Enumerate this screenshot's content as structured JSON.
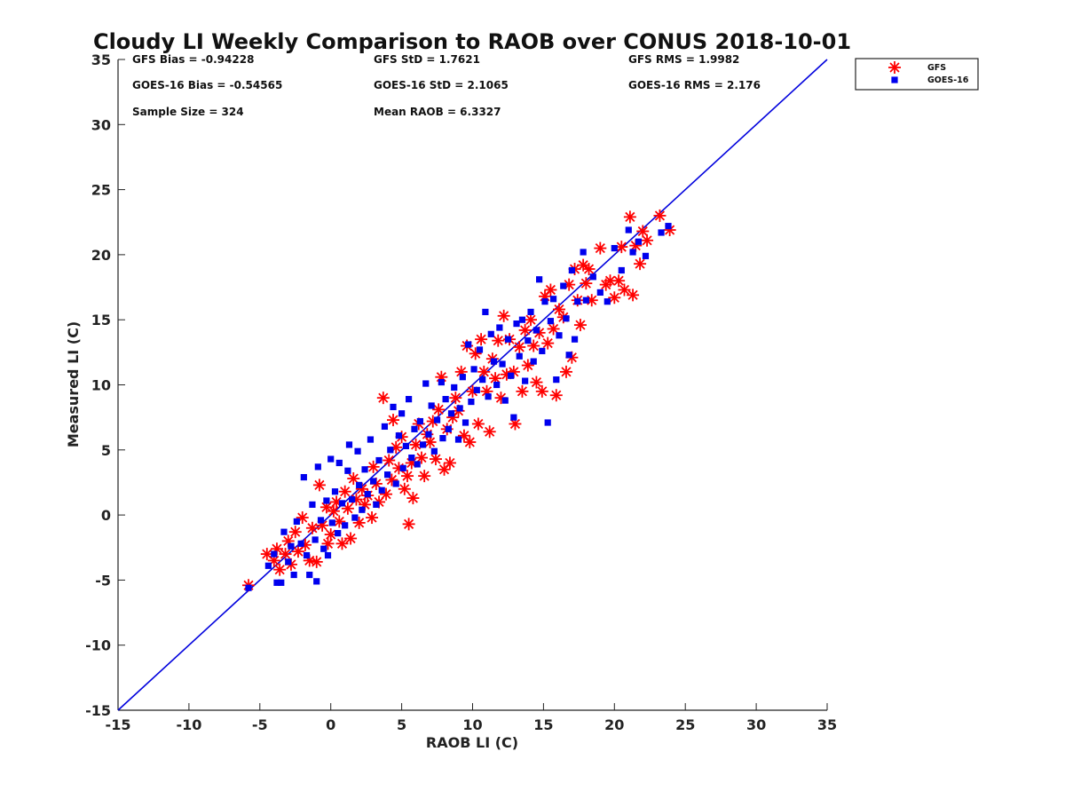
{
  "chart_data": {
    "type": "scatter",
    "title": "Cloudy LI Weekly Comparison to RAOB over CONUS 2018-10-01",
    "xlabel": "RAOB LI (C)",
    "ylabel": "Measured LI (C)",
    "xlim": [
      -15,
      35
    ],
    "ylim": [
      -15,
      35
    ],
    "xticks": [
      "-15",
      "-10",
      "-5",
      "0",
      "5",
      "10",
      "15",
      "20",
      "25",
      "30",
      "35"
    ],
    "yticks": [
      "-15",
      "-10",
      "-5",
      "0",
      "5",
      "10",
      "15",
      "20",
      "25",
      "30",
      "35"
    ],
    "grid": false,
    "legend_position": "outside top-right",
    "reference_line": {
      "type": "one-to-one",
      "from": [
        -15,
        -15
      ],
      "to": [
        35,
        35
      ],
      "color": "#0000dd"
    },
    "stats": [
      [
        "GFS Bias = -0.94228",
        "GFS StD = 1.7621",
        "GFS RMS = 1.9982"
      ],
      [
        "GOES-16 Bias = -0.54565",
        "GOES-16 StD = 2.1065",
        "GOES-16 RMS = 2.176"
      ],
      [
        "Sample Size = 324",
        "Mean RAOB = 6.3327",
        ""
      ]
    ],
    "series": [
      {
        "name": "GFS",
        "marker": "asterisk",
        "color": "#ff0000",
        "points": [
          [
            -5.8,
            -5.4
          ],
          [
            -4.5,
            -3.0
          ],
          [
            -4.0,
            -3.5
          ],
          [
            -3.8,
            -2.6
          ],
          [
            -3.6,
            -4.2
          ],
          [
            -3.2,
            -3.0
          ],
          [
            -3.0,
            -2.0
          ],
          [
            -2.8,
            -3.8
          ],
          [
            -2.5,
            -1.3
          ],
          [
            -2.3,
            -2.8
          ],
          [
            -2.0,
            -0.2
          ],
          [
            -1.8,
            -2.3
          ],
          [
            -1.5,
            -3.5
          ],
          [
            -1.3,
            -1.0
          ],
          [
            -1.0,
            -3.6
          ],
          [
            -0.8,
            2.3
          ],
          [
            -0.6,
            -0.8
          ],
          [
            -0.3,
            0.6
          ],
          [
            -0.2,
            -2.2
          ],
          [
            0.0,
            -1.5
          ],
          [
            0.2,
            0.3
          ],
          [
            0.4,
            1.0
          ],
          [
            0.6,
            -0.5
          ],
          [
            0.8,
            -2.2
          ],
          [
            1.0,
            1.8
          ],
          [
            1.2,
            0.5
          ],
          [
            1.4,
            -1.8
          ],
          [
            1.6,
            2.8
          ],
          [
            1.8,
            1.2
          ],
          [
            2.0,
            -0.6
          ],
          [
            2.2,
            2.0
          ],
          [
            2.4,
            0.8
          ],
          [
            2.6,
            1.5
          ],
          [
            2.9,
            -0.2
          ],
          [
            3.0,
            3.7
          ],
          [
            3.2,
            2.4
          ],
          [
            3.4,
            1.0
          ],
          [
            3.7,
            9.0
          ],
          [
            3.9,
            1.6
          ],
          [
            4.1,
            4.2
          ],
          [
            4.3,
            2.7
          ],
          [
            4.4,
            7.3
          ],
          [
            4.6,
            5.2
          ],
          [
            4.8,
            3.6
          ],
          [
            5.0,
            6.0
          ],
          [
            5.2,
            2.0
          ],
          [
            5.4,
            3.0
          ],
          [
            5.5,
            -0.7
          ],
          [
            5.7,
            4.0
          ],
          [
            5.8,
            1.3
          ],
          [
            6.0,
            5.4
          ],
          [
            6.2,
            7.0
          ],
          [
            6.4,
            4.4
          ],
          [
            6.6,
            3.0
          ],
          [
            6.8,
            6.2
          ],
          [
            7.0,
            5.6
          ],
          [
            7.2,
            7.2
          ],
          [
            7.4,
            4.3
          ],
          [
            7.6,
            8.1
          ],
          [
            7.8,
            10.6
          ],
          [
            8.0,
            3.5
          ],
          [
            8.2,
            6.6
          ],
          [
            8.4,
            4.0
          ],
          [
            8.6,
            7.5
          ],
          [
            8.8,
            9.0
          ],
          [
            9.0,
            8.0
          ],
          [
            9.2,
            11.0
          ],
          [
            9.4,
            6.1
          ],
          [
            9.6,
            13.0
          ],
          [
            9.8,
            5.6
          ],
          [
            10.0,
            9.5
          ],
          [
            10.2,
            12.4
          ],
          [
            10.4,
            7.0
          ],
          [
            10.6,
            13.5
          ],
          [
            10.8,
            11.0
          ],
          [
            11.0,
            9.5
          ],
          [
            11.2,
            6.4
          ],
          [
            11.4,
            12.0
          ],
          [
            11.6,
            10.5
          ],
          [
            11.8,
            13.4
          ],
          [
            12.0,
            9.0
          ],
          [
            12.2,
            15.3
          ],
          [
            12.4,
            10.8
          ],
          [
            12.6,
            13.5
          ],
          [
            12.9,
            11.0
          ],
          [
            13.0,
            7.0
          ],
          [
            13.3,
            12.9
          ],
          [
            13.5,
            9.5
          ],
          [
            13.7,
            14.2
          ],
          [
            13.9,
            11.5
          ],
          [
            14.1,
            15.0
          ],
          [
            14.3,
            13.0
          ],
          [
            14.5,
            10.2
          ],
          [
            14.7,
            14.0
          ],
          [
            14.9,
            9.5
          ],
          [
            15.1,
            16.8
          ],
          [
            15.3,
            13.2
          ],
          [
            15.5,
            17.3
          ],
          [
            15.7,
            14.3
          ],
          [
            15.9,
            9.2
          ],
          [
            16.1,
            15.8
          ],
          [
            16.4,
            15.2
          ],
          [
            16.6,
            11.0
          ],
          [
            16.8,
            17.7
          ],
          [
            17.0,
            12.1
          ],
          [
            17.2,
            18.9
          ],
          [
            17.4,
            16.5
          ],
          [
            17.6,
            14.6
          ],
          [
            17.8,
            19.2
          ],
          [
            18.0,
            17.8
          ],
          [
            18.2,
            18.9
          ],
          [
            18.4,
            16.5
          ],
          [
            19.0,
            20.5
          ],
          [
            19.4,
            17.7
          ],
          [
            19.7,
            18.0
          ],
          [
            20.0,
            16.7
          ],
          [
            20.3,
            18.0
          ],
          [
            20.5,
            20.6
          ],
          [
            20.7,
            17.3
          ],
          [
            21.1,
            22.9
          ],
          [
            21.3,
            16.9
          ],
          [
            21.5,
            20.7
          ],
          [
            21.8,
            19.3
          ],
          [
            22.0,
            21.8
          ],
          [
            22.3,
            21.1
          ],
          [
            23.2,
            23.0
          ],
          [
            23.9,
            21.9
          ]
        ]
      },
      {
        "name": "GOES-16",
        "marker": "square",
        "color": "#0000ee",
        "points": [
          [
            -5.8,
            -5.6
          ],
          [
            -4.4,
            -3.9
          ],
          [
            -4.0,
            -3.0
          ],
          [
            -3.8,
            -5.2
          ],
          [
            -3.5,
            -5.2
          ],
          [
            -3.3,
            -1.3
          ],
          [
            -3.0,
            -3.6
          ],
          [
            -2.8,
            -2.4
          ],
          [
            -2.6,
            -4.6
          ],
          [
            -2.4,
            -0.5
          ],
          [
            -2.1,
            -2.2
          ],
          [
            -1.9,
            2.9
          ],
          [
            -1.7,
            -3.1
          ],
          [
            -1.5,
            -4.6
          ],
          [
            -1.3,
            0.8
          ],
          [
            -1.1,
            -1.9
          ],
          [
            -1.0,
            -5.1
          ],
          [
            -0.9,
            3.7
          ],
          [
            -0.7,
            -0.4
          ],
          [
            -0.5,
            -2.6
          ],
          [
            -0.3,
            1.1
          ],
          [
            -0.2,
            -3.1
          ],
          [
            0.0,
            4.3
          ],
          [
            0.1,
            -0.6
          ],
          [
            0.3,
            1.8
          ],
          [
            0.5,
            -1.4
          ],
          [
            0.6,
            4.0
          ],
          [
            0.8,
            0.9
          ],
          [
            1.0,
            -0.8
          ],
          [
            1.2,
            3.4
          ],
          [
            1.3,
            5.4
          ],
          [
            1.5,
            1.2
          ],
          [
            1.7,
            -0.2
          ],
          [
            1.9,
            4.9
          ],
          [
            2.0,
            2.3
          ],
          [
            2.2,
            0.4
          ],
          [
            2.4,
            3.5
          ],
          [
            2.6,
            1.6
          ],
          [
            2.8,
            5.8
          ],
          [
            3.0,
            2.6
          ],
          [
            3.2,
            0.8
          ],
          [
            3.4,
            4.2
          ],
          [
            3.6,
            1.9
          ],
          [
            3.8,
            6.8
          ],
          [
            4.0,
            3.1
          ],
          [
            4.2,
            5.0
          ],
          [
            4.4,
            8.3
          ],
          [
            4.6,
            2.4
          ],
          [
            4.8,
            6.1
          ],
          [
            5.0,
            7.8
          ],
          [
            5.1,
            3.6
          ],
          [
            5.3,
            5.3
          ],
          [
            5.5,
            8.9
          ],
          [
            5.7,
            4.4
          ],
          [
            5.9,
            6.6
          ],
          [
            6.1,
            3.9
          ],
          [
            6.3,
            7.2
          ],
          [
            6.5,
            5.4
          ],
          [
            6.7,
            10.1
          ],
          [
            6.9,
            6.2
          ],
          [
            7.1,
            8.4
          ],
          [
            7.3,
            4.9
          ],
          [
            7.5,
            7.3
          ],
          [
            7.8,
            10.2
          ],
          [
            7.9,
            5.9
          ],
          [
            8.1,
            8.9
          ],
          [
            8.3,
            6.6
          ],
          [
            8.5,
            7.8
          ],
          [
            8.7,
            9.8
          ],
          [
            9.0,
            5.8
          ],
          [
            9.1,
            8.2
          ],
          [
            9.3,
            10.6
          ],
          [
            9.5,
            7.1
          ],
          [
            9.7,
            13.1
          ],
          [
            9.9,
            8.7
          ],
          [
            10.1,
            11.2
          ],
          [
            10.3,
            9.6
          ],
          [
            10.5,
            12.7
          ],
          [
            10.7,
            10.4
          ],
          [
            10.9,
            15.6
          ],
          [
            11.1,
            9.1
          ],
          [
            11.3,
            13.9
          ],
          [
            11.5,
            11.8
          ],
          [
            11.7,
            10.0
          ],
          [
            11.9,
            14.4
          ],
          [
            12.1,
            11.6
          ],
          [
            12.3,
            8.8
          ],
          [
            12.5,
            13.5
          ],
          [
            12.7,
            10.7
          ],
          [
            12.9,
            7.5
          ],
          [
            13.1,
            14.7
          ],
          [
            13.3,
            12.2
          ],
          [
            13.5,
            15.0
          ],
          [
            13.7,
            10.3
          ],
          [
            13.9,
            13.4
          ],
          [
            14.1,
            15.6
          ],
          [
            14.3,
            11.8
          ],
          [
            14.5,
            14.2
          ],
          [
            14.7,
            18.1
          ],
          [
            14.9,
            12.6
          ],
          [
            15.1,
            16.4
          ],
          [
            15.3,
            7.1
          ],
          [
            15.5,
            14.9
          ],
          [
            15.7,
            16.6
          ],
          [
            15.9,
            10.4
          ],
          [
            16.1,
            13.8
          ],
          [
            16.4,
            17.6
          ],
          [
            16.6,
            15.1
          ],
          [
            16.8,
            12.3
          ],
          [
            17.0,
            18.8
          ],
          [
            17.2,
            13.5
          ],
          [
            17.4,
            16.4
          ],
          [
            17.8,
            20.2
          ],
          [
            18.0,
            16.5
          ],
          [
            18.5,
            18.3
          ],
          [
            19.0,
            17.1
          ],
          [
            19.5,
            16.4
          ],
          [
            20.0,
            20.5
          ],
          [
            20.5,
            18.8
          ],
          [
            21.0,
            21.9
          ],
          [
            21.3,
            20.2
          ],
          [
            21.7,
            21.0
          ],
          [
            22.2,
            19.9
          ],
          [
            23.3,
            21.7
          ],
          [
            23.8,
            22.2
          ]
        ]
      }
    ]
  }
}
